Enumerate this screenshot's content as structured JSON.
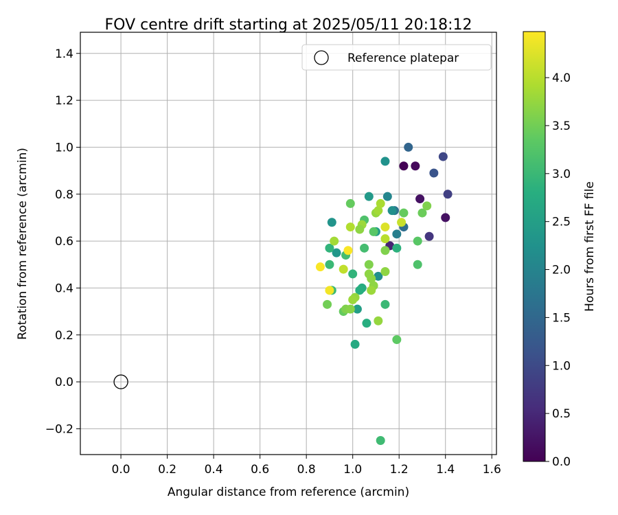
{
  "chart_data": {
    "type": "scatter",
    "title": "FOV centre drift starting at 2025/05/11 20:18:12",
    "xlabel": "Angular distance from reference (arcmin)",
    "ylabel": "Rotation from reference (arcmin)",
    "xlim": [
      -0.175,
      1.62
    ],
    "ylim": [
      -0.31,
      1.49
    ],
    "x_ticks": [
      0.0,
      0.2,
      0.4,
      0.6,
      0.8,
      1.0,
      1.2,
      1.4,
      1.6
    ],
    "x_tick_labels": [
      "0.0",
      "0.2",
      "0.4",
      "0.6",
      "0.8",
      "1.0",
      "1.2",
      "1.4",
      "1.6"
    ],
    "y_ticks": [
      -0.2,
      0.0,
      0.2,
      0.4,
      0.6,
      0.8,
      1.0,
      1.2,
      1.4
    ],
    "y_tick_labels": [
      "−0.2",
      "0.0",
      "0.2",
      "0.4",
      "0.6",
      "0.8",
      "1.0",
      "1.2",
      "1.4"
    ],
    "grid": true,
    "legend": {
      "placement": "upper right",
      "entries": [
        {
          "label": "Reference platepar",
          "marker": "open-circle"
        }
      ]
    },
    "reference_point": {
      "x": 0.0,
      "y": 0.0
    },
    "colorbar": {
      "label": "Hours from first FF file",
      "colormap": "viridis",
      "range": [
        0.0,
        4.48
      ],
      "ticks": [
        0.0,
        0.5,
        1.0,
        1.5,
        2.0,
        2.5,
        3.0,
        3.5,
        4.0
      ],
      "tick_labels": [
        "0.0",
        "0.5",
        "1.0",
        "1.5",
        "2.0",
        "2.5",
        "3.0",
        "3.5",
        "4.0"
      ]
    },
    "points": [
      {
        "x": 1.22,
        "y": 0.92,
        "t": 0.03
      },
      {
        "x": 1.27,
        "y": 0.92,
        "t": 0.1
      },
      {
        "x": 1.29,
        "y": 0.78,
        "t": 0.2
      },
      {
        "x": 1.4,
        "y": 0.7,
        "t": 0.2
      },
      {
        "x": 1.16,
        "y": 0.58,
        "t": 0.45
      },
      {
        "x": 1.33,
        "y": 0.62,
        "t": 0.7
      },
      {
        "x": 1.41,
        "y": 0.8,
        "t": 0.85
      },
      {
        "x": 1.39,
        "y": 0.96,
        "t": 0.95
      },
      {
        "x": 1.35,
        "y": 0.89,
        "t": 1.15
      },
      {
        "x": 1.24,
        "y": 1.0,
        "t": 1.45
      },
      {
        "x": 1.22,
        "y": 0.66,
        "t": 1.6
      },
      {
        "x": 1.18,
        "y": 0.73,
        "t": 1.7
      },
      {
        "x": 1.19,
        "y": 0.63,
        "t": 1.9
      },
      {
        "x": 1.15,
        "y": 0.79,
        "t": 2.05
      },
      {
        "x": 1.17,
        "y": 0.73,
        "t": 2.2
      },
      {
        "x": 1.14,
        "y": 0.94,
        "t": 2.25
      },
      {
        "x": 1.11,
        "y": 0.45,
        "t": 2.2
      },
      {
        "x": 0.91,
        "y": 0.68,
        "t": 2.3
      },
      {
        "x": 0.93,
        "y": 0.55,
        "t": 2.35
      },
      {
        "x": 1.07,
        "y": 0.79,
        "t": 2.4
      },
      {
        "x": 1.1,
        "y": 0.64,
        "t": 2.45
      },
      {
        "x": 1.02,
        "y": 0.31,
        "t": 2.5
      },
      {
        "x": 1.01,
        "y": 0.16,
        "t": 2.7
      },
      {
        "x": 1.06,
        "y": 0.25,
        "t": 2.8
      },
      {
        "x": 1.19,
        "y": 0.57,
        "t": 2.85
      },
      {
        "x": 1.04,
        "y": 0.4,
        "t": 2.75
      },
      {
        "x": 1.03,
        "y": 0.39,
        "t": 2.8
      },
      {
        "x": 1.0,
        "y": 0.46,
        "t": 2.9
      },
      {
        "x": 0.9,
        "y": 0.57,
        "t": 2.9
      },
      {
        "x": 0.9,
        "y": 0.5,
        "t": 3.0
      },
      {
        "x": 0.91,
        "y": 0.39,
        "t": 3.0
      },
      {
        "x": 1.14,
        "y": 0.33,
        "t": 3.0
      },
      {
        "x": 1.12,
        "y": -0.25,
        "t": 3.05
      },
      {
        "x": 1.19,
        "y": 0.18,
        "t": 3.35
      },
      {
        "x": 1.28,
        "y": 0.5,
        "t": 3.2
      },
      {
        "x": 1.28,
        "y": 0.6,
        "t": 3.3
      },
      {
        "x": 1.05,
        "y": 0.57,
        "t": 3.1
      },
      {
        "x": 0.97,
        "y": 0.54,
        "t": 3.1
      },
      {
        "x": 1.05,
        "y": 0.69,
        "t": 3.2
      },
      {
        "x": 1.09,
        "y": 0.64,
        "t": 3.3
      },
      {
        "x": 1.22,
        "y": 0.72,
        "t": 3.4
      },
      {
        "x": 1.3,
        "y": 0.72,
        "t": 3.45
      },
      {
        "x": 1.32,
        "y": 0.75,
        "t": 3.6
      },
      {
        "x": 0.99,
        "y": 0.76,
        "t": 3.4
      },
      {
        "x": 0.96,
        "y": 0.3,
        "t": 3.4
      },
      {
        "x": 0.89,
        "y": 0.33,
        "t": 3.5
      },
      {
        "x": 0.97,
        "y": 0.31,
        "t": 3.6
      },
      {
        "x": 0.99,
        "y": 0.31,
        "t": 3.65
      },
      {
        "x": 1.01,
        "y": 0.36,
        "t": 3.75
      },
      {
        "x": 1.0,
        "y": 0.35,
        "t": 3.8
      },
      {
        "x": 1.07,
        "y": 0.5,
        "t": 3.6
      },
      {
        "x": 1.07,
        "y": 0.46,
        "t": 3.7
      },
      {
        "x": 1.08,
        "y": 0.44,
        "t": 3.7
      },
      {
        "x": 1.09,
        "y": 0.41,
        "t": 3.7
      },
      {
        "x": 1.08,
        "y": 0.39,
        "t": 3.8
      },
      {
        "x": 1.14,
        "y": 0.47,
        "t": 3.7
      },
      {
        "x": 1.14,
        "y": 0.56,
        "t": 3.6
      },
      {
        "x": 1.11,
        "y": 0.26,
        "t": 3.75
      },
      {
        "x": 1.04,
        "y": 0.67,
        "t": 3.8
      },
      {
        "x": 1.03,
        "y": 0.65,
        "t": 3.7
      },
      {
        "x": 1.1,
        "y": 0.72,
        "t": 3.75
      },
      {
        "x": 1.11,
        "y": 0.73,
        "t": 3.85
      },
      {
        "x": 1.12,
        "y": 0.76,
        "t": 3.9
      },
      {
        "x": 0.92,
        "y": 0.6,
        "t": 3.85
      },
      {
        "x": 0.99,
        "y": 0.66,
        "t": 3.95
      },
      {
        "x": 1.14,
        "y": 0.61,
        "t": 4.0
      },
      {
        "x": 0.96,
        "y": 0.48,
        "t": 4.05
      },
      {
        "x": 1.21,
        "y": 0.68,
        "t": 4.1
      },
      {
        "x": 1.14,
        "y": 0.66,
        "t": 4.25
      },
      {
        "x": 0.98,
        "y": 0.56,
        "t": 4.45
      },
      {
        "x": 0.86,
        "y": 0.49,
        "t": 4.45
      },
      {
        "x": 0.9,
        "y": 0.39,
        "t": 4.4
      }
    ]
  }
}
